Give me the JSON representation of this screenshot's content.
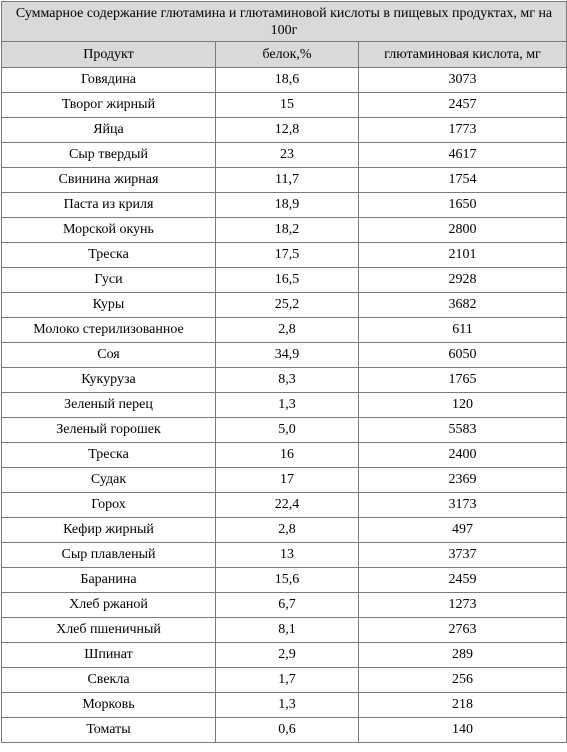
{
  "table": {
    "title": "Суммарное содержание глютамина и глютаминовой кислоты в пищевых продуктах, мг на 100г",
    "headers": [
      "Продукт",
      "белок,%",
      "глютаминовая кислота, мг"
    ],
    "rows": [
      [
        "Говядина",
        "18,6",
        "3073"
      ],
      [
        "Творог жирный",
        "15",
        "2457"
      ],
      [
        "Яйца",
        "12,8",
        "1773"
      ],
      [
        "Сыр твердый",
        "23",
        "4617"
      ],
      [
        "Свинина жирная",
        "11,7",
        "1754"
      ],
      [
        "Паста из криля",
        "18,9",
        "1650"
      ],
      [
        "Морской окунь",
        "18,2",
        "2800"
      ],
      [
        "Треска",
        "17,5",
        "2101"
      ],
      [
        "Гуси",
        "16,5",
        "2928"
      ],
      [
        "Куры",
        "25,2",
        "3682"
      ],
      [
        "Молоко стерилизованное",
        "2,8",
        "611"
      ],
      [
        "Соя",
        "34,9",
        "6050"
      ],
      [
        "Кукуруза",
        "8,3",
        "1765"
      ],
      [
        "Зеленый перец",
        "1,3",
        "120"
      ],
      [
        "Зеленый горошек",
        "5,0",
        "5583"
      ],
      [
        "Треска",
        "16",
        "2400"
      ],
      [
        "Судак",
        "17",
        "2369"
      ],
      [
        "Горох",
        "22,4",
        "3173"
      ],
      [
        "Кефир жирный",
        "2,8",
        "497"
      ],
      [
        "Сыр плавленый",
        "13",
        "3737"
      ],
      [
        "Баранина",
        "15,6",
        "2459"
      ],
      [
        "Хлеб ржаной",
        "6,7",
        "1273"
      ],
      [
        "Хлеб пшеничный",
        "8,1",
        "2763"
      ],
      [
        "Шпинат",
        "2,9",
        "289"
      ],
      [
        "Свекла",
        "1,7",
        "256"
      ],
      [
        "Морковь",
        "1,3",
        "218"
      ],
      [
        "Томаты",
        "0,6",
        "140"
      ]
    ]
  },
  "colors": {
    "header_bg": "#d9d9d9",
    "border": "#7a7a7a",
    "text": "#000000"
  }
}
